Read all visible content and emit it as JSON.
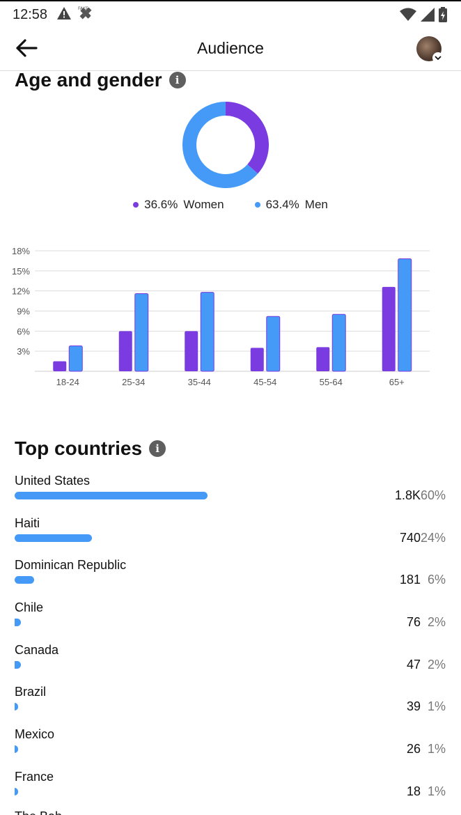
{
  "status_bar": {
    "time": "12:58",
    "left_icons": [
      "alert-icon",
      "fake-gps-icon"
    ],
    "right_icons": [
      "wifi-icon",
      "signal-icon",
      "battery-icon"
    ]
  },
  "header": {
    "title": "Audience",
    "back_icon": "arrow-left-icon"
  },
  "colors": {
    "women": "#7a3be0",
    "men": "#4599f7"
  },
  "age_gender": {
    "title": "Age and gender",
    "legend": [
      {
        "pct": "36.6%",
        "label": "Women",
        "value": 36.6
      },
      {
        "pct": "63.4%",
        "label": "Men",
        "value": 63.4
      }
    ]
  },
  "chart_data": {
    "type": "bar",
    "categories": [
      "18-24",
      "25-34",
      "35-44",
      "45-54",
      "55-64",
      "65+"
    ],
    "series": [
      {
        "name": "Women",
        "values": [
          1.5,
          6.0,
          6.0,
          3.5,
          3.6,
          12.6
        ]
      },
      {
        "name": "Men",
        "values": [
          3.8,
          11.6,
          11.8,
          8.2,
          8.5,
          16.8
        ]
      }
    ],
    "y_ticks": [
      "18%",
      "15%",
      "12%",
      "9%",
      "6%",
      "3%"
    ],
    "y_tick_values": [
      18,
      15,
      12,
      9,
      6,
      3
    ],
    "ylim": [
      0,
      18
    ],
    "grid": true
  },
  "top_countries": {
    "title": "Top countries",
    "items": [
      {
        "name": "United States",
        "count": "1.8K",
        "pct": "60%",
        "share": 60
      },
      {
        "name": "Haiti",
        "count": "740",
        "pct": "24%",
        "share": 24
      },
      {
        "name": "Dominican Republic",
        "count": "181",
        "pct": "6%",
        "share": 6
      },
      {
        "name": "Chile",
        "count": "76",
        "pct": "2%",
        "share": 2
      },
      {
        "name": "Canada",
        "count": "47",
        "pct": "2%",
        "share": 2
      },
      {
        "name": "Brazil",
        "count": "39",
        "pct": "1%",
        "share": 1
      },
      {
        "name": "Mexico",
        "count": "26",
        "pct": "1%",
        "share": 1
      },
      {
        "name": "France",
        "count": "18",
        "pct": "1%",
        "share": 1
      }
    ],
    "cutoff_item": "The Bah"
  }
}
